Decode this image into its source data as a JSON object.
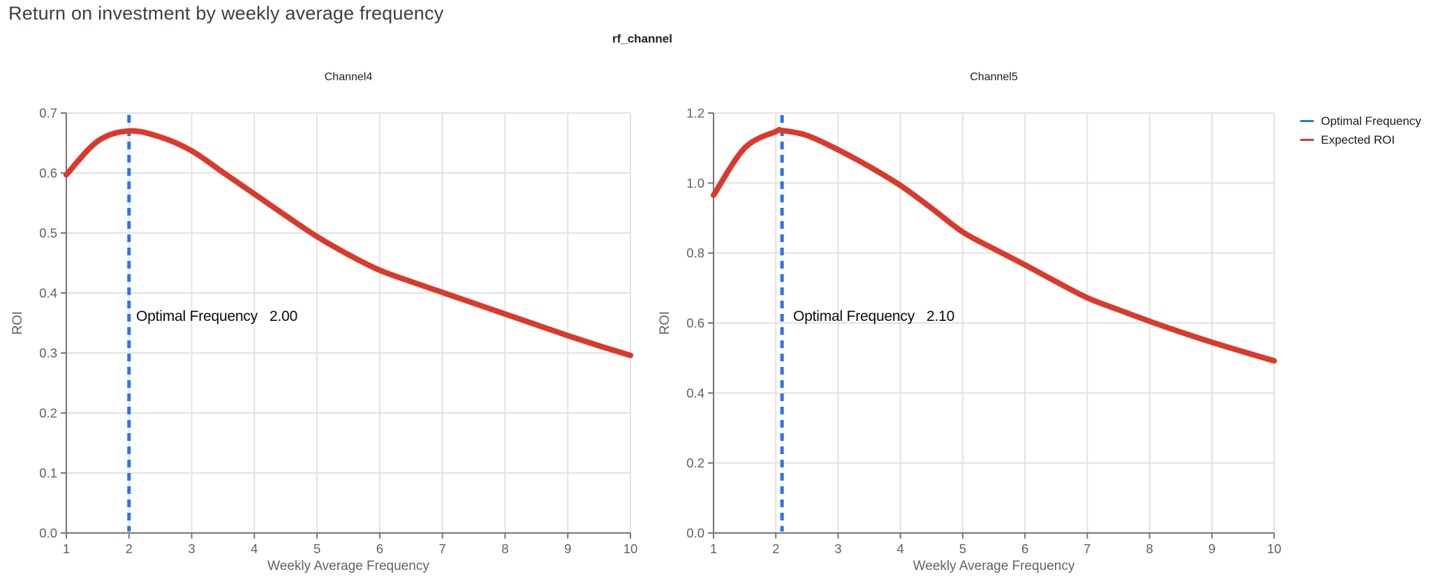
{
  "page": {
    "title": "Return on investment by weekly average frequency",
    "facet_header": "rf_channel"
  },
  "colors": {
    "expected_roi_red": "#d93a2b",
    "optimal_frequency_blue": "#2a76e8",
    "gridline": "#e2e2e2",
    "axis": "#757575",
    "tick_label": "#616161"
  },
  "legend": [
    {
      "label": "Optimal Frequency",
      "color": "#2a76e8"
    },
    {
      "label": "Expected ROI",
      "color": "#d93a2b"
    }
  ],
  "chart_data": {
    "type": "line",
    "facet_field": "rf_channel",
    "panels": [
      {
        "title": "Channel4",
        "xlabel": "Weekly Average Frequency",
        "ylabel": "ROI",
        "xlim": [
          1,
          10
        ],
        "ylim": [
          0,
          0.7
        ],
        "x_ticks": [
          1,
          2,
          3,
          4,
          5,
          6,
          7,
          8,
          9,
          10
        ],
        "y_ticks": [
          0,
          0.1,
          0.2,
          0.3,
          0.4,
          0.5,
          0.6,
          0.7
        ],
        "y_tick_decimals": 1,
        "optimal_frequency": 2.0,
        "annotation": {
          "label": "Optimal Frequency",
          "value": "2.00"
        },
        "series": [
          {
            "name": "Expected ROI",
            "x": [
              1,
              1.5,
              2,
              2.5,
              3,
              3.5,
              4,
              4.5,
              5,
              5.5,
              6,
              6.5,
              7,
              7.5,
              8,
              8.5,
              9,
              9.5,
              10
            ],
            "y": [
              0.597,
              0.653,
              0.67,
              0.66,
              0.637,
              0.601,
              0.565,
              0.529,
              0.494,
              0.464,
              0.438,
              0.419,
              0.401,
              0.383,
              0.365,
              0.347,
              0.329,
              0.312,
              0.296
            ]
          }
        ]
      },
      {
        "title": "Channel5",
        "xlabel": "Weekly Average Frequency",
        "ylabel": "ROI",
        "xlim": [
          1,
          10
        ],
        "ylim": [
          0,
          1.2
        ],
        "x_ticks": [
          1,
          2,
          3,
          4,
          5,
          6,
          7,
          8,
          9,
          10
        ],
        "y_ticks": [
          0,
          0.2,
          0.4,
          0.6,
          0.8,
          1.0,
          1.2
        ],
        "y_tick_decimals": 1,
        "optimal_frequency": 2.1,
        "annotation": {
          "label": "Optimal Frequency",
          "value": "2.10"
        },
        "series": [
          {
            "name": "Expected ROI",
            "x": [
              1,
              1.5,
              2,
              2.1,
              2.5,
              3,
              3.5,
              4,
              4.5,
              5,
              5.5,
              6,
              6.5,
              7,
              7.5,
              8,
              8.5,
              9,
              9.5,
              10
            ],
            "y": [
              0.965,
              1.1,
              1.147,
              1.15,
              1.136,
              1.095,
              1.047,
              0.993,
              0.928,
              0.86,
              0.812,
              0.766,
              0.718,
              0.672,
              0.638,
              0.605,
              0.574,
              0.545,
              0.518,
              0.492
            ]
          }
        ]
      }
    ]
  }
}
